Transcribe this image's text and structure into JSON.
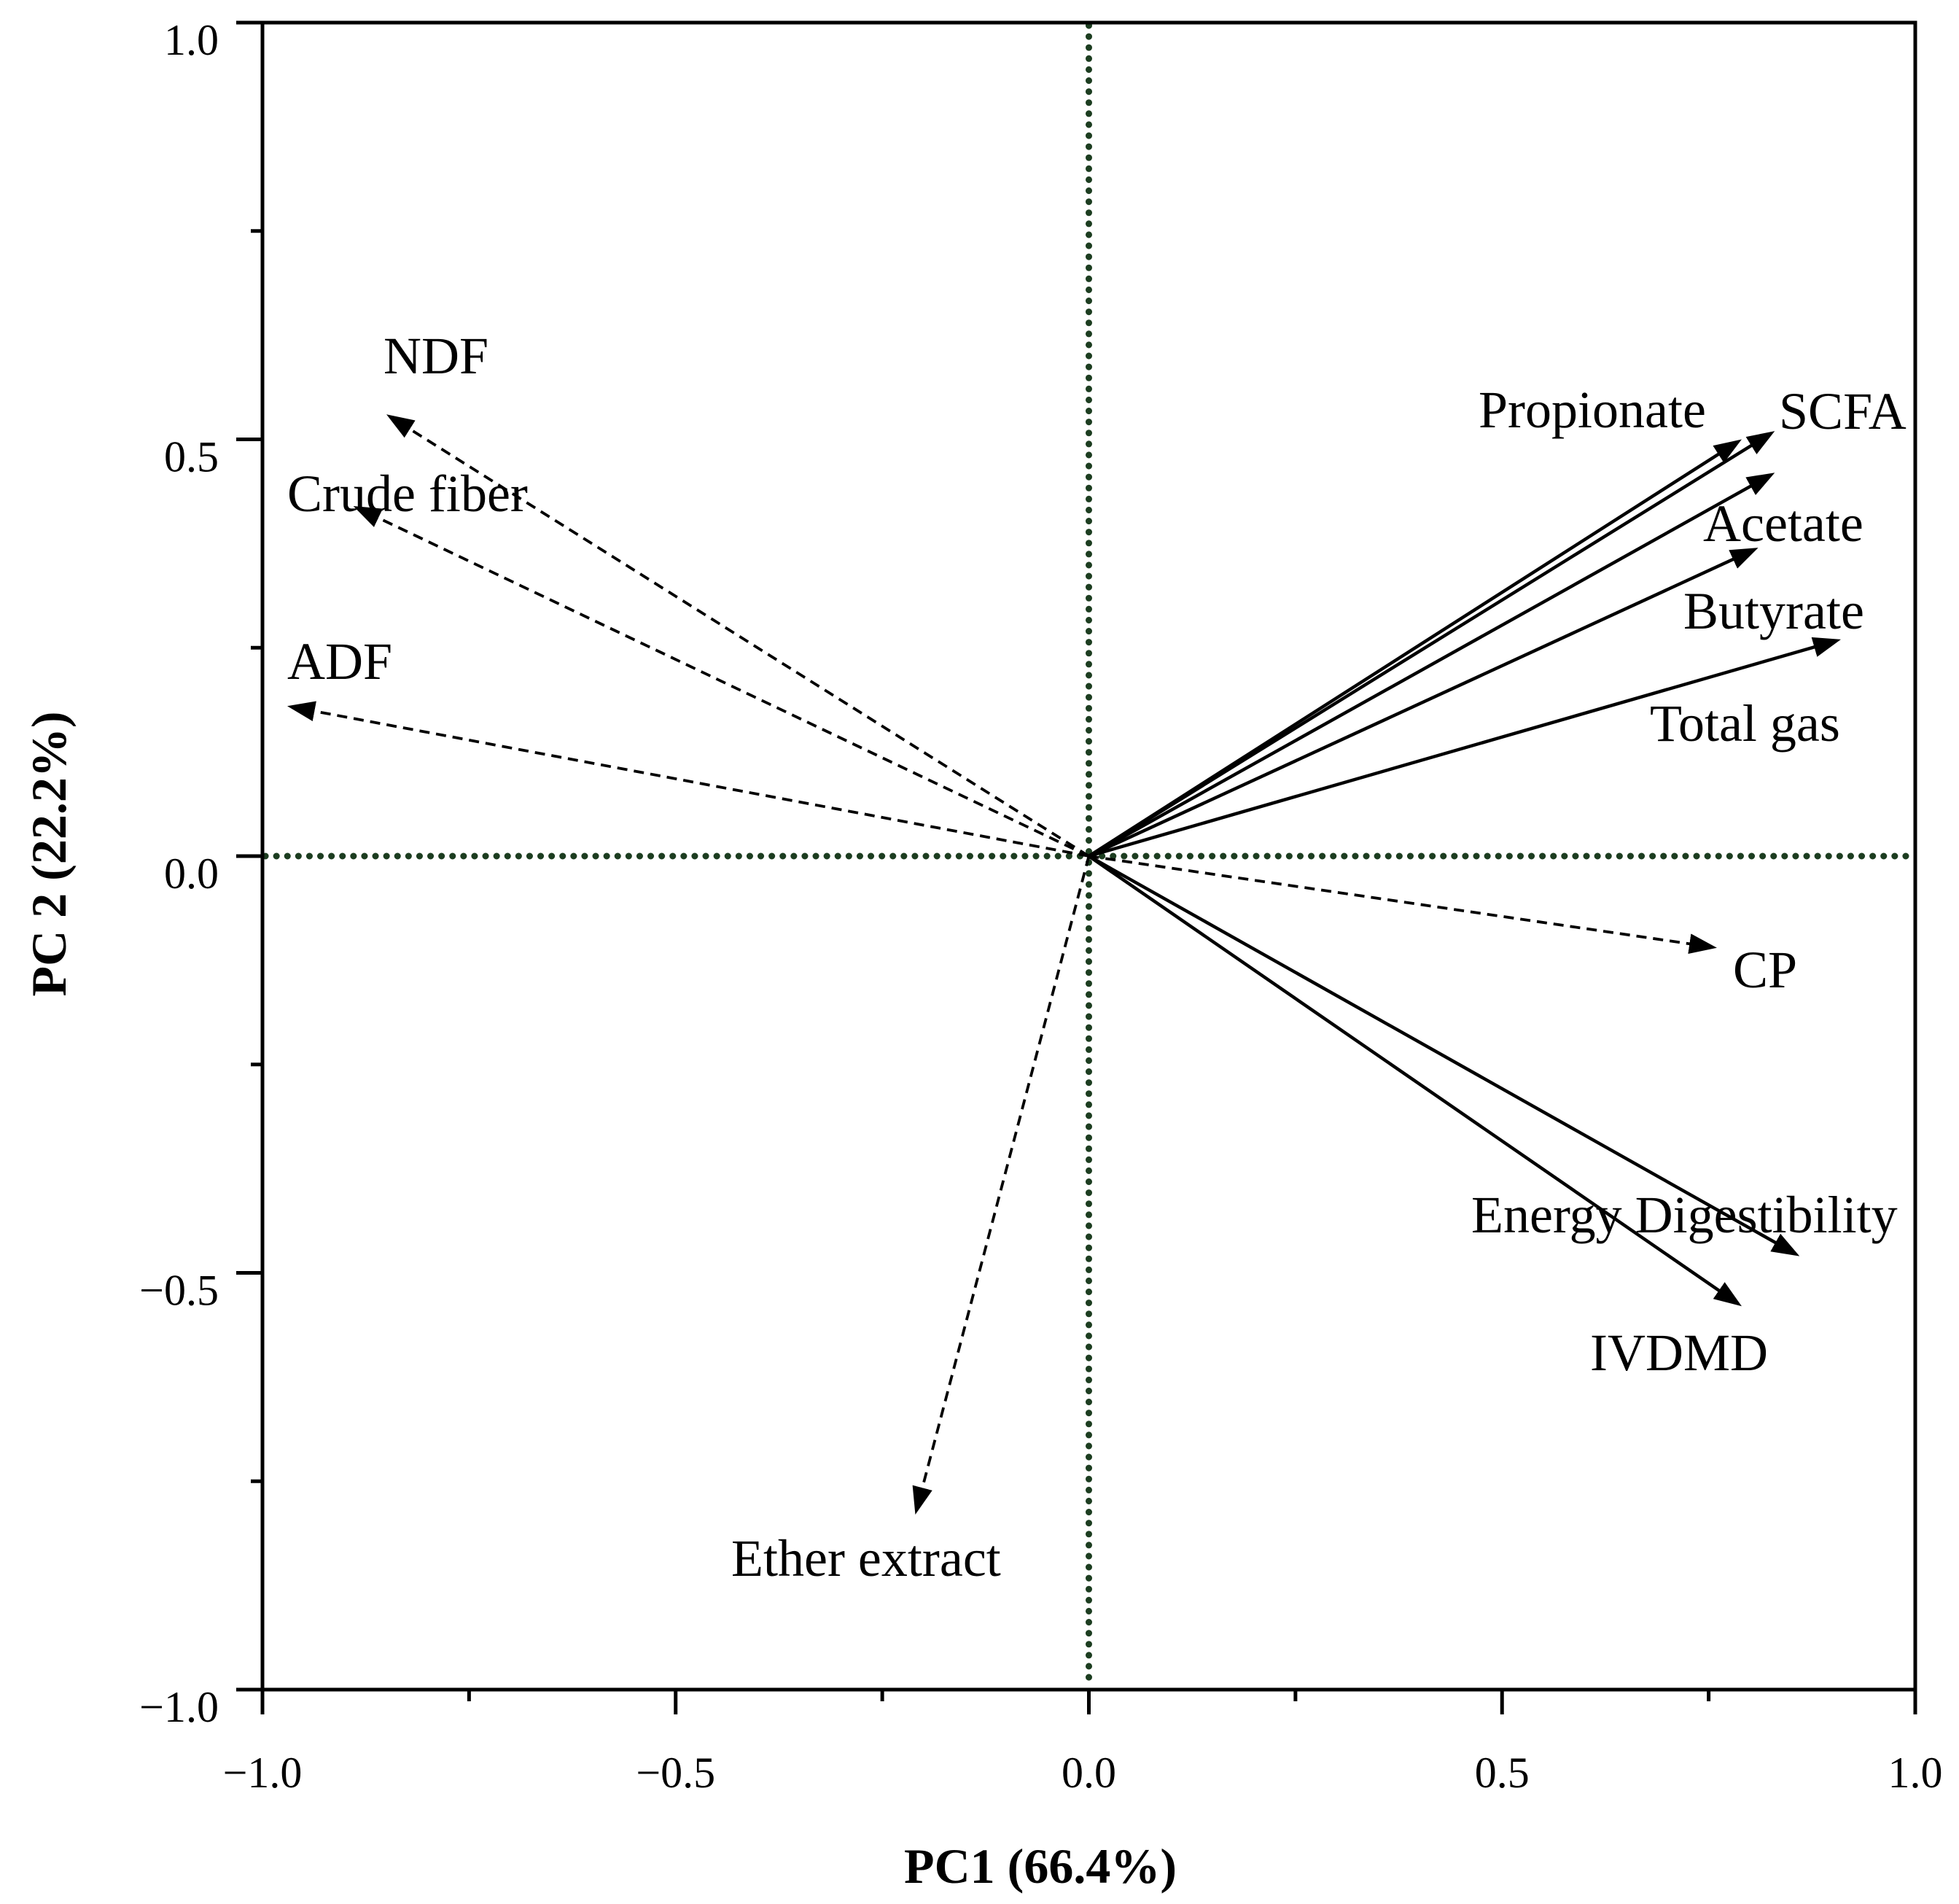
{
  "chart_data": {
    "type": "scatter",
    "xlabel": "PC1 (66.4%)",
    "ylabel": "PC 2 (22.2%)",
    "xlim": [
      -1.0,
      1.0
    ],
    "ylim": [
      -1.0,
      1.0
    ],
    "grid": false,
    "x_axis": {
      "major_ticks": [
        -1.0,
        -0.5,
        0.0,
        0.5,
        1.0
      ],
      "minor_ticks": [
        -0.75,
        -0.25,
        0.25,
        0.75
      ],
      "tick_labels": [
        "−1.0",
        "−0.5",
        "0.0",
        "0.5",
        "1.0"
      ]
    },
    "y_axis": {
      "major_ticks": [
        -1.0,
        -0.5,
        0.0,
        0.5,
        1.0
      ],
      "minor_ticks": [
        -0.75,
        -0.25,
        0.25,
        0.75
      ],
      "tick_labels": [
        "−1.0",
        "−0.5",
        "0.0",
        "0.5",
        "1.0"
      ]
    },
    "reference_lines": {
      "x": 0.0,
      "y": 0.0,
      "color": "#1c3d20"
    },
    "vector_color": "#000000",
    "vectors": [
      {
        "name": "NDF",
        "x": -0.85,
        "y": 0.53,
        "dashed": true
      },
      {
        "name": "Crude fiber",
        "x": -0.89,
        "y": 0.42,
        "dashed": true
      },
      {
        "name": "ADF",
        "x": -0.97,
        "y": 0.18,
        "dashed": true
      },
      {
        "name": "Ether extract",
        "x": -0.21,
        "y": -0.79,
        "dashed": true
      },
      {
        "name": "CP",
        "x": 0.76,
        "y": -0.11,
        "dashed": true
      },
      {
        "name": "Propionate",
        "x": 0.79,
        "y": 0.5,
        "dashed": false
      },
      {
        "name": "SCFA",
        "x": 0.83,
        "y": 0.51,
        "dashed": false
      },
      {
        "name": "Acetate",
        "x": 0.83,
        "y": 0.46,
        "dashed": false
      },
      {
        "name": "Butyrate",
        "x": 0.81,
        "y": 0.37,
        "dashed": false
      },
      {
        "name": "Total gas",
        "x": 0.91,
        "y": 0.26,
        "dashed": false
      },
      {
        "name": "Energy Digestibility",
        "x": 0.86,
        "y": -0.48,
        "dashed": false
      },
      {
        "name": "IVDMD",
        "x": 0.79,
        "y": -0.54,
        "dashed": false
      }
    ]
  }
}
